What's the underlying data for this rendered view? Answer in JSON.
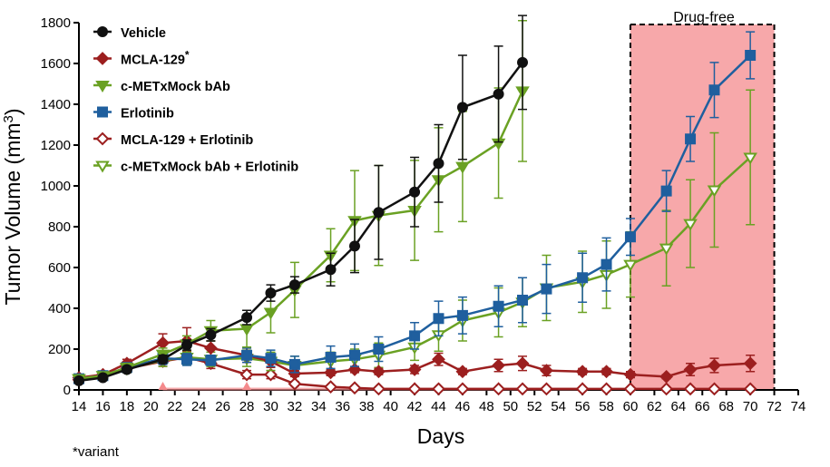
{
  "chart_data": {
    "type": "line",
    "xlabel": "Days",
    "ylabel": "Tumor Volume (mm3)",
    "xlim": [
      14,
      74
    ],
    "ylim": [
      0,
      1800
    ],
    "x_ticks": [
      14,
      16,
      18,
      20,
      22,
      24,
      26,
      28,
      30,
      32,
      34,
      36,
      38,
      40,
      42,
      44,
      46,
      48,
      50,
      52,
      54,
      56,
      58,
      60,
      62,
      64,
      66,
      68,
      70,
      72,
      74
    ],
    "y_ticks": [
      0,
      200,
      400,
      600,
      800,
      1000,
      1200,
      1400,
      1600,
      1800
    ],
    "grid": false,
    "legend_position": "top-left",
    "shaded_region": {
      "label": "Drug-free",
      "x_start": 60,
      "x_end": 72,
      "color": "#f7a8aa"
    },
    "dosing_markers": {
      "x": [
        21,
        28,
        35,
        42,
        49,
        56
      ],
      "color": "#f48a8c"
    },
    "series": [
      {
        "name": "Vehicle",
        "color": "#111111",
        "marker": "circle",
        "filled": true,
        "points": [
          {
            "x": 14,
            "y": 45,
            "err": 10
          },
          {
            "x": 16,
            "y": 60,
            "err": 12
          },
          {
            "x": 18,
            "y": 100,
            "err": 15
          },
          {
            "x": 21,
            "y": 150,
            "err": 20
          },
          {
            "x": 23,
            "y": 220,
            "err": 25
          },
          {
            "x": 25,
            "y": 270,
            "err": 30
          },
          {
            "x": 28,
            "y": 355,
            "err": 35
          },
          {
            "x": 30,
            "y": 475,
            "err": 40
          },
          {
            "x": 32,
            "y": 515,
            "err": 40
          },
          {
            "x": 35,
            "y": 590,
            "err": 80
          },
          {
            "x": 37,
            "y": 705,
            "err": 130
          },
          {
            "x": 39,
            "y": 870,
            "err": 230
          },
          {
            "x": 42,
            "y": 970,
            "err": 170
          },
          {
            "x": 44,
            "y": 1110,
            "err": 190
          },
          {
            "x": 46,
            "y": 1385,
            "err": 255
          },
          {
            "x": 49,
            "y": 1450,
            "err": 235
          },
          {
            "x": 51,
            "y": 1605,
            "err": 230
          }
        ]
      },
      {
        "name": "MCLA-129*",
        "color": "#9c1f1f",
        "marker": "diamond",
        "filled": true,
        "points": [
          {
            "x": 14,
            "y": 60,
            "err": 10
          },
          {
            "x": 16,
            "y": 75,
            "err": 12
          },
          {
            "x": 18,
            "y": 130,
            "err": 20
          },
          {
            "x": 21,
            "y": 230,
            "err": 45
          },
          {
            "x": 23,
            "y": 240,
            "err": 65
          },
          {
            "x": 25,
            "y": 205,
            "err": 35
          },
          {
            "x": 28,
            "y": 170,
            "err": 35
          },
          {
            "x": 30,
            "y": 140,
            "err": 30
          },
          {
            "x": 32,
            "y": 80,
            "err": 15
          },
          {
            "x": 35,
            "y": 85,
            "err": 15
          },
          {
            "x": 37,
            "y": 100,
            "err": 15
          },
          {
            "x": 39,
            "y": 90,
            "err": 15
          },
          {
            "x": 42,
            "y": 100,
            "err": 20
          },
          {
            "x": 44,
            "y": 150,
            "err": 30
          },
          {
            "x": 46,
            "y": 90,
            "err": 15
          },
          {
            "x": 49,
            "y": 120,
            "err": 30
          },
          {
            "x": 51,
            "y": 130,
            "err": 35
          },
          {
            "x": 53,
            "y": 95,
            "err": 25
          },
          {
            "x": 56,
            "y": 90,
            "err": 15
          },
          {
            "x": 58,
            "y": 90,
            "err": 15
          },
          {
            "x": 60,
            "y": 75,
            "err": 15
          },
          {
            "x": 63,
            "y": 65,
            "err": 10
          },
          {
            "x": 65,
            "y": 100,
            "err": 30
          },
          {
            "x": 67,
            "y": 120,
            "err": 35
          },
          {
            "x": 70,
            "y": 130,
            "err": 40
          }
        ]
      },
      {
        "name": "c-METxMock bAb",
        "color": "#6aa123",
        "marker": "triangle-down",
        "filled": true,
        "points": [
          {
            "x": 14,
            "y": 55,
            "err": 10
          },
          {
            "x": 16,
            "y": 70,
            "err": 15
          },
          {
            "x": 18,
            "y": 110,
            "err": 20
          },
          {
            "x": 21,
            "y": 175,
            "err": 30
          },
          {
            "x": 23,
            "y": 225,
            "err": 40
          },
          {
            "x": 25,
            "y": 290,
            "err": 50
          },
          {
            "x": 28,
            "y": 300,
            "err": 90
          },
          {
            "x": 30,
            "y": 380,
            "err": 100
          },
          {
            "x": 32,
            "y": 490,
            "err": 135
          },
          {
            "x": 35,
            "y": 660,
            "err": 130
          },
          {
            "x": 37,
            "y": 830,
            "err": 245
          },
          {
            "x": 39,
            "y": 855,
            "err": 245
          },
          {
            "x": 42,
            "y": 880,
            "err": 245
          },
          {
            "x": 44,
            "y": 1030,
            "err": 255
          },
          {
            "x": 46,
            "y": 1095,
            "err": 270
          },
          {
            "x": 49,
            "y": 1210,
            "err": 270
          },
          {
            "x": 51,
            "y": 1465,
            "err": 345
          }
        ]
      },
      {
        "name": "Erlotinib",
        "color": "#1f5f9e",
        "marker": "square",
        "filled": true,
        "points": [
          {
            "x": 14,
            "y": 55,
            "err": 10
          },
          {
            "x": 16,
            "y": 70,
            "err": 12
          },
          {
            "x": 18,
            "y": 110,
            "err": 20
          },
          {
            "x": 21,
            "y": 155,
            "err": 30
          },
          {
            "x": 23,
            "y": 150,
            "err": 30
          },
          {
            "x": 25,
            "y": 145,
            "err": 25
          },
          {
            "x": 28,
            "y": 170,
            "err": 35
          },
          {
            "x": 30,
            "y": 155,
            "err": 40
          },
          {
            "x": 32,
            "y": 125,
            "err": 40
          },
          {
            "x": 35,
            "y": 160,
            "err": 55
          },
          {
            "x": 37,
            "y": 170,
            "err": 55
          },
          {
            "x": 39,
            "y": 200,
            "err": 60
          },
          {
            "x": 42,
            "y": 265,
            "err": 65
          },
          {
            "x": 44,
            "y": 350,
            "err": 85
          },
          {
            "x": 46,
            "y": 365,
            "err": 90
          },
          {
            "x": 49,
            "y": 410,
            "err": 100
          },
          {
            "x": 51,
            "y": 440,
            "err": 110
          },
          {
            "x": 53,
            "y": 495,
            "err": 120
          },
          {
            "x": 56,
            "y": 550,
            "err": 120
          },
          {
            "x": 58,
            "y": 615,
            "err": 130
          },
          {
            "x": 60,
            "y": 750,
            "err": 90
          },
          {
            "x": 63,
            "y": 975,
            "err": 100
          },
          {
            "x": 65,
            "y": 1230,
            "err": 110
          },
          {
            "x": 67,
            "y": 1470,
            "err": 135
          },
          {
            "x": 70,
            "y": 1640,
            "err": 115
          }
        ]
      },
      {
        "name": "MCLA-129 + Erlotinib",
        "color": "#9c1f1f",
        "marker": "diamond",
        "filled": false,
        "points": [
          {
            "x": 14,
            "y": 50,
            "err": 8
          },
          {
            "x": 16,
            "y": 70,
            "err": 10
          },
          {
            "x": 18,
            "y": 105,
            "err": 15
          },
          {
            "x": 21,
            "y": 140,
            "err": 25
          },
          {
            "x": 23,
            "y": 160,
            "err": 30
          },
          {
            "x": 25,
            "y": 130,
            "err": 25
          },
          {
            "x": 28,
            "y": 75,
            "err": 20
          },
          {
            "x": 30,
            "y": 75,
            "err": 20
          },
          {
            "x": 32,
            "y": 30,
            "err": 10
          },
          {
            "x": 35,
            "y": 15,
            "err": 5
          },
          {
            "x": 37,
            "y": 10,
            "err": 5
          },
          {
            "x": 39,
            "y": 5,
            "err": 3
          },
          {
            "x": 42,
            "y": 5,
            "err": 3
          },
          {
            "x": 44,
            "y": 5,
            "err": 3
          },
          {
            "x": 46,
            "y": 5,
            "err": 3
          },
          {
            "x": 49,
            "y": 5,
            "err": 3
          },
          {
            "x": 51,
            "y": 5,
            "err": 3
          },
          {
            "x": 53,
            "y": 5,
            "err": 3
          },
          {
            "x": 56,
            "y": 5,
            "err": 3
          },
          {
            "x": 58,
            "y": 5,
            "err": 3
          },
          {
            "x": 60,
            "y": 5,
            "err": 3
          },
          {
            "x": 63,
            "y": 5,
            "err": 3
          },
          {
            "x": 65,
            "y": 5,
            "err": 3
          },
          {
            "x": 67,
            "y": 5,
            "err": 3
          },
          {
            "x": 70,
            "y": 5,
            "err": 3
          }
        ]
      },
      {
        "name": "c-METxMock bAb + Erlotinib",
        "color": "#6aa123",
        "marker": "triangle-down",
        "filled": false,
        "points": [
          {
            "x": 14,
            "y": 55,
            "err": 10
          },
          {
            "x": 16,
            "y": 70,
            "err": 12
          },
          {
            "x": 18,
            "y": 105,
            "err": 20
          },
          {
            "x": 21,
            "y": 145,
            "err": 30
          },
          {
            "x": 23,
            "y": 160,
            "err": 35
          },
          {
            "x": 25,
            "y": 150,
            "err": 35
          },
          {
            "x": 28,
            "y": 155,
            "err": 40
          },
          {
            "x": 30,
            "y": 140,
            "err": 45
          },
          {
            "x": 32,
            "y": 120,
            "err": 45
          },
          {
            "x": 35,
            "y": 140,
            "err": 45
          },
          {
            "x": 37,
            "y": 150,
            "err": 50
          },
          {
            "x": 39,
            "y": 170,
            "err": 60
          },
          {
            "x": 42,
            "y": 210,
            "err": 65
          },
          {
            "x": 44,
            "y": 270,
            "err": 80
          },
          {
            "x": 46,
            "y": 340,
            "err": 100
          },
          {
            "x": 49,
            "y": 380,
            "err": 120
          },
          {
            "x": 51,
            "y": 430,
            "err": 120
          },
          {
            "x": 53,
            "y": 500,
            "err": 160
          },
          {
            "x": 56,
            "y": 530,
            "err": 150
          },
          {
            "x": 58,
            "y": 565,
            "err": 165
          },
          {
            "x": 60,
            "y": 615,
            "err": 160
          },
          {
            "x": 63,
            "y": 695,
            "err": 185
          },
          {
            "x": 65,
            "y": 815,
            "err": 215
          },
          {
            "x": 67,
            "y": 980,
            "err": 280
          },
          {
            "x": 70,
            "y": 1140,
            "err": 330
          }
        ]
      }
    ]
  },
  "footnote": "*variant"
}
